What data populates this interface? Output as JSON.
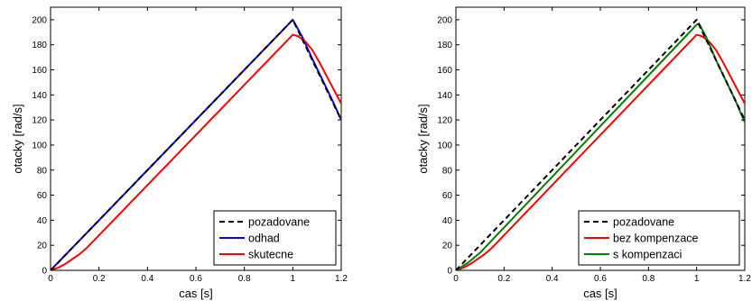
{
  "chart_data": [
    {
      "type": "line",
      "title": "",
      "xlabel": "cas [s]",
      "ylabel": "otacky [rad/s]",
      "xlim": [
        0,
        1.2
      ],
      "ylim": [
        0,
        210
      ],
      "xticks": [
        "0",
        "0.2",
        "0.4",
        "0.6",
        "0.8",
        "1",
        "1.2"
      ],
      "yticks": [
        "0",
        "20",
        "40",
        "60",
        "80",
        "100",
        "120",
        "140",
        "160",
        "180",
        "200"
      ],
      "grid": false,
      "legend_position": "bottom-right",
      "series": [
        {
          "name": "pozadovane",
          "color": "#000000",
          "dash": "dashed",
          "x": [
            0,
            1.0,
            1.2
          ],
          "y": [
            0,
            200,
            120
          ]
        },
        {
          "name": "odhad",
          "color": "#0000ff",
          "dash": "solid",
          "x": [
            0,
            1.0,
            1.04,
            1.08,
            1.12,
            1.16,
            1.2
          ],
          "y": [
            0,
            200,
            186,
            169,
            153,
            137,
            120
          ]
        },
        {
          "name": "skutecne",
          "color": "#ff0000",
          "dash": "solid",
          "x": [
            0,
            0.03,
            0.06,
            0.09,
            0.12,
            0.15,
            0.2,
            1.0,
            1.02,
            1.05,
            1.08,
            1.11,
            1.14,
            1.17,
            1.2
          ],
          "y": [
            0,
            2,
            5,
            9,
            13,
            18,
            28,
            188,
            187,
            183,
            176,
            166,
            155,
            144,
            133
          ]
        }
      ]
    },
    {
      "type": "line",
      "title": "",
      "xlabel": "cas [s]",
      "ylabel": "otacky [rad/s]",
      "xlim": [
        0,
        1.2
      ],
      "ylim": [
        0,
        210
      ],
      "xticks": [
        "0",
        "0.2",
        "0.4",
        "0.6",
        "0.8",
        "1",
        "1.2"
      ],
      "yticks": [
        "0",
        "20",
        "40",
        "60",
        "80",
        "100",
        "120",
        "140",
        "160",
        "180",
        "200"
      ],
      "grid": false,
      "legend_position": "bottom-right",
      "series": [
        {
          "name": "pozadovane",
          "color": "#000000",
          "dash": "dashed",
          "x": [
            0,
            1.0,
            1.2
          ],
          "y": [
            0,
            200,
            120
          ]
        },
        {
          "name": "bez kompenzace",
          "color": "#ff0000",
          "dash": "solid",
          "x": [
            0,
            0.03,
            0.06,
            0.09,
            0.12,
            0.15,
            0.2,
            1.0,
            1.02,
            1.05,
            1.08,
            1.11,
            1.14,
            1.17,
            1.2
          ],
          "y": [
            0,
            2,
            5,
            9,
            13,
            18,
            28,
            188,
            187,
            183,
            176,
            166,
            155,
            144,
            133
          ]
        },
        {
          "name": "s kompenzaci",
          "color": "#008000",
          "dash": "solid",
          "x": [
            0,
            0.05,
            0.1,
            1.0,
            1.01,
            1.04,
            1.08,
            1.12,
            1.16,
            1.2
          ],
          "y": [
            0,
            6,
            14,
            196,
            197,
            186,
            168,
            152,
            136,
            118
          ]
        }
      ]
    }
  ]
}
